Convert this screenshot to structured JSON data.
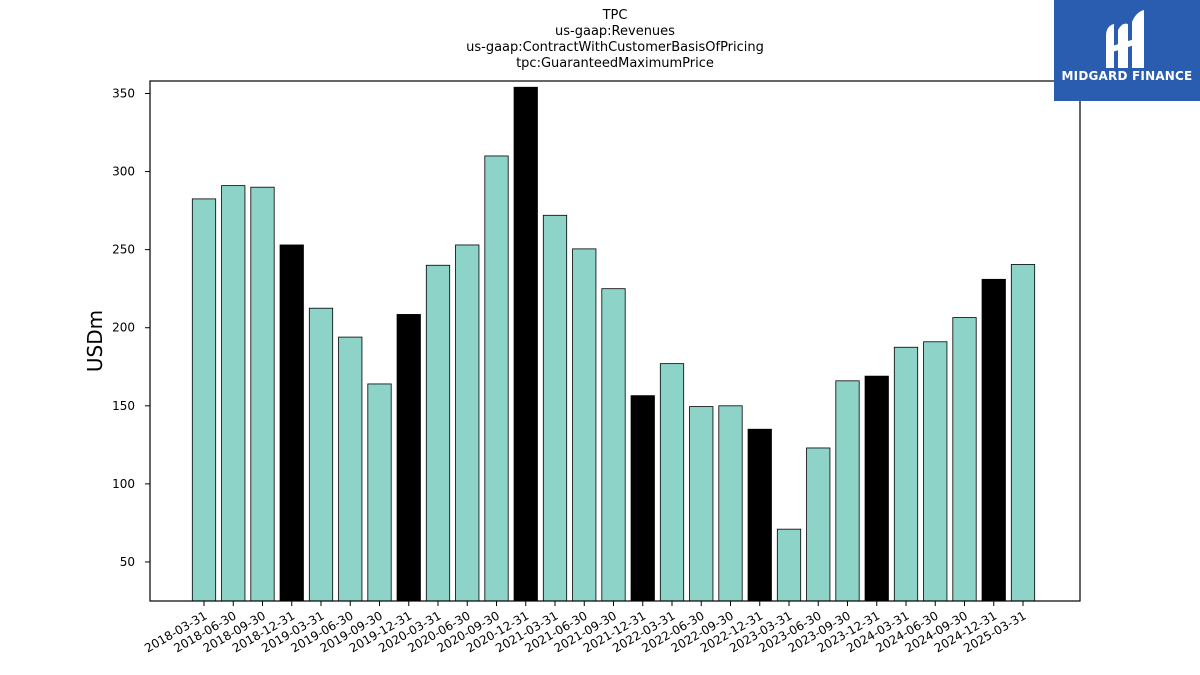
{
  "title_lines": [
    "TPC",
    "us-gaap:Revenues",
    "us-gaap:ContractWithCustomerBasisOfPricing",
    "tpc:GuaranteedMaximumPrice"
  ],
  "logo": {
    "text": "MIDGARD FINANCE",
    "bg_color": "#2a5db0"
  },
  "colors": {
    "quarter_bar": "#8dd3c7",
    "year_end_bar": "#000000",
    "edge": "#000000"
  },
  "chart_data": {
    "type": "bar",
    "title": "TPC\nus-gaap:Revenues\nus-gaap:ContractWithCustomerBasisOfPricing\ntpc:GuaranteedMaximumPrice",
    "xlabel": "",
    "ylabel": "USDm",
    "ylim": [
      25,
      358
    ],
    "yticks": [
      50,
      100,
      150,
      200,
      250,
      300,
      350
    ],
    "grid": false,
    "categories": [
      "2018-03-31",
      "2018-06-30",
      "2018-09-30",
      "2018-12-31",
      "2019-03-31",
      "2019-06-30",
      "2019-09-30",
      "2019-12-31",
      "2020-03-31",
      "2020-06-30",
      "2020-09-30",
      "2020-12-31",
      "2021-03-31",
      "2021-06-30",
      "2021-09-30",
      "2021-12-31",
      "2022-03-31",
      "2022-06-30",
      "2022-09-30",
      "2022-12-31",
      "2023-03-31",
      "2023-06-30",
      "2023-09-30",
      "2023-12-31",
      "2024-03-31",
      "2024-06-30",
      "2024-09-30",
      "2024-12-31",
      "2025-03-31"
    ],
    "values": [
      282.5,
      291,
      290,
      253,
      212.5,
      194,
      164,
      208.5,
      240,
      253,
      310,
      354,
      272,
      250.5,
      225,
      156.5,
      177,
      149.5,
      150,
      135,
      71,
      123,
      166,
      169,
      187.5,
      191,
      206.5,
      231,
      240.5
    ],
    "year_end": [
      false,
      false,
      false,
      true,
      false,
      false,
      false,
      true,
      false,
      false,
      false,
      true,
      false,
      false,
      false,
      true,
      false,
      false,
      false,
      true,
      false,
      false,
      false,
      true,
      false,
      false,
      false,
      true,
      false
    ]
  }
}
